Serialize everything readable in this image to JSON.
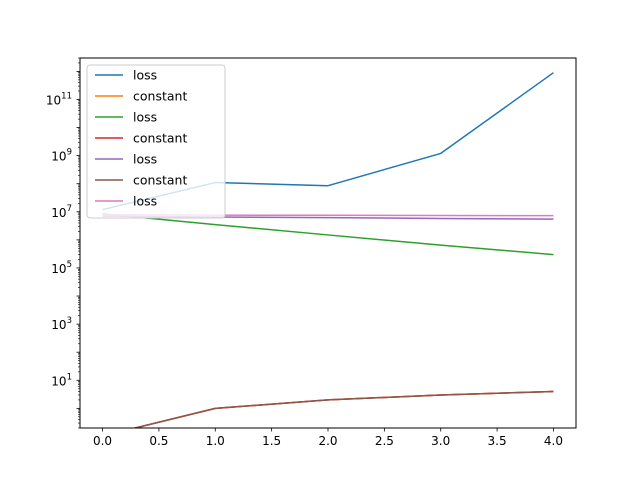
{
  "chart_data": {
    "type": "line",
    "y_scale": "log",
    "xlim": [
      -0.2,
      4.2
    ],
    "ylim": [
      0.2,
      3000000000000.0
    ],
    "grid": false,
    "legend_position": "upper-left",
    "x_ticks": [
      {
        "value": 0.0,
        "label": "0.0"
      },
      {
        "value": 0.5,
        "label": "0.5"
      },
      {
        "value": 1.0,
        "label": "1.0"
      },
      {
        "value": 1.5,
        "label": "1.5"
      },
      {
        "value": 2.0,
        "label": "2.0"
      },
      {
        "value": 2.5,
        "label": "2.5"
      },
      {
        "value": 3.0,
        "label": "3.0"
      },
      {
        "value": 3.5,
        "label": "3.5"
      },
      {
        "value": 4.0,
        "label": "4.0"
      }
    ],
    "y_ticks": [
      {
        "value": 10,
        "base": "10",
        "exp": "1"
      },
      {
        "value": 1000,
        "base": "10",
        "exp": "3"
      },
      {
        "value": 100000,
        "base": "10",
        "exp": "5"
      },
      {
        "value": 10000000,
        "base": "10",
        "exp": "7"
      },
      {
        "value": 1000000000,
        "base": "10",
        "exp": "9"
      },
      {
        "value": 100000000000,
        "base": "10",
        "exp": "11"
      }
    ],
    "series": [
      {
        "name": "loss",
        "color": "#1f77b4",
        "x": [
          0,
          1,
          2,
          3,
          4
        ],
        "y": [
          12000000,
          110000000,
          85000000,
          1200000000,
          900000000000
        ]
      },
      {
        "name": "constant",
        "color": "#ff7f0e",
        "x": [
          0,
          1,
          2,
          3,
          4
        ],
        "y": [
          0,
          1,
          2,
          3,
          4
        ]
      },
      {
        "name": "loss",
        "color": "#2ca02c",
        "x": [
          0,
          1,
          2,
          3,
          4
        ],
        "y": [
          8500000,
          3500000,
          1500000,
          650000,
          300000
        ]
      },
      {
        "name": "constant",
        "color": "#d62728",
        "x": [
          0,
          1,
          2,
          3,
          4
        ],
        "y": [
          0,
          1,
          2,
          3,
          4
        ]
      },
      {
        "name": "loss",
        "color": "#9467bd",
        "x": [
          0,
          1,
          2,
          3,
          4
        ],
        "y": [
          7000000,
          6500000,
          6200000,
          5800000,
          5500000
        ]
      },
      {
        "name": "constant",
        "color": "#8c564b",
        "x": [
          0,
          1,
          2,
          3,
          4
        ],
        "y": [
          0,
          1,
          2,
          3,
          4
        ]
      },
      {
        "name": "loss",
        "color": "#e377c2",
        "x": [
          0,
          1,
          2,
          3,
          4
        ],
        "y": [
          7800000,
          7600000,
          7500000,
          7400000,
          7300000
        ]
      }
    ]
  }
}
